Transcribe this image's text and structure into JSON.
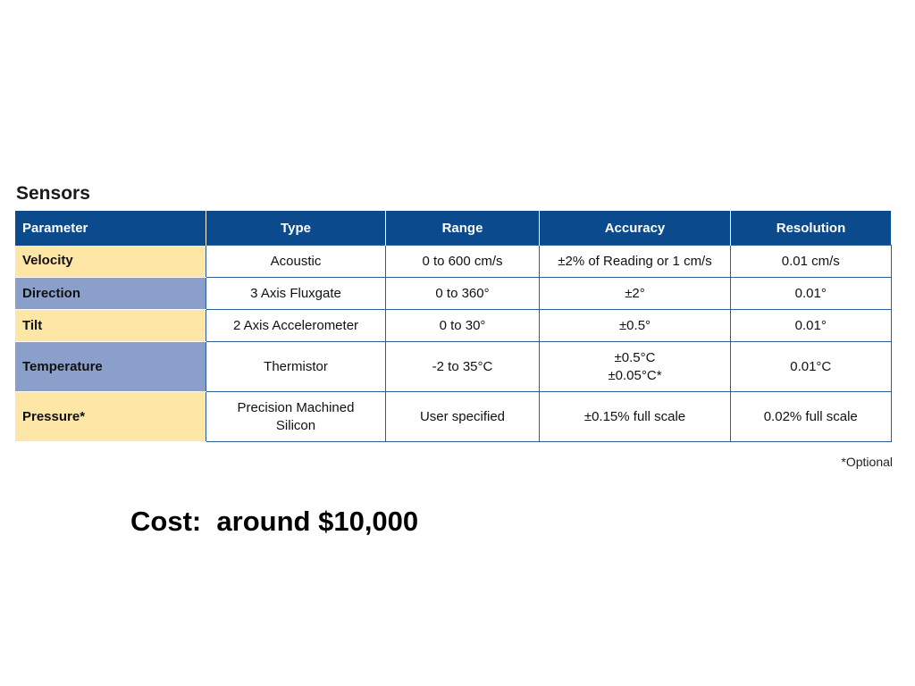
{
  "title": "Sensors",
  "table": {
    "headers": [
      "Parameter",
      "Type",
      "Range",
      "Accuracy",
      "Resolution"
    ],
    "rows": [
      {
        "parameter": "Velocity",
        "type": "Acoustic",
        "type2": "",
        "range": "0 to 600 cm/s",
        "accuracy": "±2% of Reading or 1 cm/s",
        "accuracy2": "",
        "resolution": "0.01 cm/s"
      },
      {
        "parameter": "Direction",
        "type": "3 Axis Fluxgate",
        "type2": "",
        "range": "0 to 360°",
        "accuracy": "±2°",
        "accuracy2": "",
        "resolution": "0.01°"
      },
      {
        "parameter": "Tilt",
        "type": "2 Axis Accelerometer",
        "type2": "",
        "range": "0 to 30°",
        "accuracy": "±0.5°",
        "accuracy2": "",
        "resolution": "0.01°"
      },
      {
        "parameter": "Temperature",
        "type": "Thermistor",
        "type2": "",
        "range": "-2 to 35°C",
        "accuracy": "±0.5°C",
        "accuracy2": "±0.05°C*",
        "resolution": "0.01°C"
      },
      {
        "parameter": "Pressure*",
        "type": "Precision Machined",
        "type2": "Silicon",
        "range": "User specified",
        "accuracy": "±0.15% full scale",
        "accuracy2": "",
        "resolution": "0.02% full scale"
      }
    ]
  },
  "footnote": "*Optional",
  "cost": "Cost:  around $10,000",
  "colors": {
    "header_bg": "#0b4a8c",
    "param_light": "#fde6a6",
    "param_dark": "#8a9fca",
    "border": "#2a5d9a"
  }
}
